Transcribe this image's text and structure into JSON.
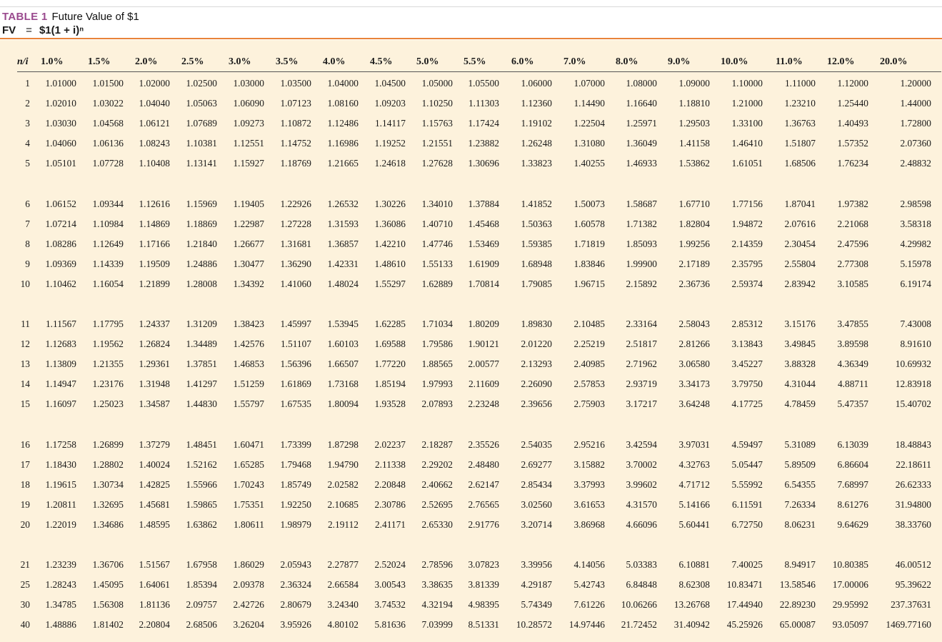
{
  "title": {
    "label": "TABLE 1",
    "text": "Future Value of $1",
    "formula_lhs": "FV",
    "formula_eq": "=",
    "formula_rhs": "$1(1 + i)ⁿ"
  },
  "colors": {
    "accent_title": "#9a4a8e",
    "rule": "#e8833a",
    "panel": "#fdf2dc"
  },
  "columns": [
    "n/i",
    "1.0%",
    "1.5%",
    "2.0%",
    "2.5%",
    "3.0%",
    "3.5%",
    "4.0%",
    "4.5%",
    "5.0%",
    "5.5%",
    "6.0%",
    "7.0%",
    "8.0%",
    "9.0%",
    "10.0%",
    "11.0%",
    "12.0%",
    "20.0%"
  ],
  "rows": [
    [
      "1",
      "1.01000",
      "1.01500",
      "1.02000",
      "1.02500",
      "1.03000",
      "1.03500",
      "1.04000",
      "1.04500",
      "1.05000",
      "1.05500",
      "1.06000",
      "1.07000",
      "1.08000",
      "1.09000",
      "1.10000",
      "1.11000",
      "1.12000",
      "1.20000"
    ],
    [
      "2",
      "1.02010",
      "1.03022",
      "1.04040",
      "1.05063",
      "1.06090",
      "1.07123",
      "1.08160",
      "1.09203",
      "1.10250",
      "1.11303",
      "1.12360",
      "1.14490",
      "1.16640",
      "1.18810",
      "1.21000",
      "1.23210",
      "1.25440",
      "1.44000"
    ],
    [
      "3",
      "1.03030",
      "1.04568",
      "1.06121",
      "1.07689",
      "1.09273",
      "1.10872",
      "1.12486",
      "1.14117",
      "1.15763",
      "1.17424",
      "1.19102",
      "1.22504",
      "1.25971",
      "1.29503",
      "1.33100",
      "1.36763",
      "1.40493",
      "1.72800"
    ],
    [
      "4",
      "1.04060",
      "1.06136",
      "1.08243",
      "1.10381",
      "1.12551",
      "1.14752",
      "1.16986",
      "1.19252",
      "1.21551",
      "1.23882",
      "1.26248",
      "1.31080",
      "1.36049",
      "1.41158",
      "1.46410",
      "1.51807",
      "1.57352",
      "2.07360"
    ],
    [
      "5",
      "1.05101",
      "1.07728",
      "1.10408",
      "1.13141",
      "1.15927",
      "1.18769",
      "1.21665",
      "1.24618",
      "1.27628",
      "1.30696",
      "1.33823",
      "1.40255",
      "1.46933",
      "1.53862",
      "1.61051",
      "1.68506",
      "1.76234",
      "2.48832"
    ],
    [
      "6",
      "1.06152",
      "1.09344",
      "1.12616",
      "1.15969",
      "1.19405",
      "1.22926",
      "1.26532",
      "1.30226",
      "1.34010",
      "1.37884",
      "1.41852",
      "1.50073",
      "1.58687",
      "1.67710",
      "1.77156",
      "1.87041",
      "1.97382",
      "2.98598"
    ],
    [
      "7",
      "1.07214",
      "1.10984",
      "1.14869",
      "1.18869",
      "1.22987",
      "1.27228",
      "1.31593",
      "1.36086",
      "1.40710",
      "1.45468",
      "1.50363",
      "1.60578",
      "1.71382",
      "1.82804",
      "1.94872",
      "2.07616",
      "2.21068",
      "3.58318"
    ],
    [
      "8",
      "1.08286",
      "1.12649",
      "1.17166",
      "1.21840",
      "1.26677",
      "1.31681",
      "1.36857",
      "1.42210",
      "1.47746",
      "1.53469",
      "1.59385",
      "1.71819",
      "1.85093",
      "1.99256",
      "2.14359",
      "2.30454",
      "2.47596",
      "4.29982"
    ],
    [
      "9",
      "1.09369",
      "1.14339",
      "1.19509",
      "1.24886",
      "1.30477",
      "1.36290",
      "1.42331",
      "1.48610",
      "1.55133",
      "1.61909",
      "1.68948",
      "1.83846",
      "1.99900",
      "2.17189",
      "2.35795",
      "2.55804",
      "2.77308",
      "5.15978"
    ],
    [
      "10",
      "1.10462",
      "1.16054",
      "1.21899",
      "1.28008",
      "1.34392",
      "1.41060",
      "1.48024",
      "1.55297",
      "1.62889",
      "1.70814",
      "1.79085",
      "1.96715",
      "2.15892",
      "2.36736",
      "2.59374",
      "2.83942",
      "3.10585",
      "6.19174"
    ],
    [
      "11",
      "1.11567",
      "1.17795",
      "1.24337",
      "1.31209",
      "1.38423",
      "1.45997",
      "1.53945",
      "1.62285",
      "1.71034",
      "1.80209",
      "1.89830",
      "2.10485",
      "2.33164",
      "2.58043",
      "2.85312",
      "3.15176",
      "3.47855",
      "7.43008"
    ],
    [
      "12",
      "1.12683",
      "1.19562",
      "1.26824",
      "1.34489",
      "1.42576",
      "1.51107",
      "1.60103",
      "1.69588",
      "1.79586",
      "1.90121",
      "2.01220",
      "2.25219",
      "2.51817",
      "2.81266",
      "3.13843",
      "3.49845",
      "3.89598",
      "8.91610"
    ],
    [
      "13",
      "1.13809",
      "1.21355",
      "1.29361",
      "1.37851",
      "1.46853",
      "1.56396",
      "1.66507",
      "1.77220",
      "1.88565",
      "2.00577",
      "2.13293",
      "2.40985",
      "2.71962",
      "3.06580",
      "3.45227",
      "3.88328",
      "4.36349",
      "10.69932"
    ],
    [
      "14",
      "1.14947",
      "1.23176",
      "1.31948",
      "1.41297",
      "1.51259",
      "1.61869",
      "1.73168",
      "1.85194",
      "1.97993",
      "2.11609",
      "2.26090",
      "2.57853",
      "2.93719",
      "3.34173",
      "3.79750",
      "4.31044",
      "4.88711",
      "12.83918"
    ],
    [
      "15",
      "1.16097",
      "1.25023",
      "1.34587",
      "1.44830",
      "1.55797",
      "1.67535",
      "1.80094",
      "1.93528",
      "2.07893",
      "2.23248",
      "2.39656",
      "2.75903",
      "3.17217",
      "3.64248",
      "4.17725",
      "4.78459",
      "5.47357",
      "15.40702"
    ],
    [
      "16",
      "1.17258",
      "1.26899",
      "1.37279",
      "1.48451",
      "1.60471",
      "1.73399",
      "1.87298",
      "2.02237",
      "2.18287",
      "2.35526",
      "2.54035",
      "2.95216",
      "3.42594",
      "3.97031",
      "4.59497",
      "5.31089",
      "6.13039",
      "18.48843"
    ],
    [
      "17",
      "1.18430",
      "1.28802",
      "1.40024",
      "1.52162",
      "1.65285",
      "1.79468",
      "1.94790",
      "2.11338",
      "2.29202",
      "2.48480",
      "2.69277",
      "3.15882",
      "3.70002",
      "4.32763",
      "5.05447",
      "5.89509",
      "6.86604",
      "22.18611"
    ],
    [
      "18",
      "1.19615",
      "1.30734",
      "1.42825",
      "1.55966",
      "1.70243",
      "1.85749",
      "2.02582",
      "2.20848",
      "2.40662",
      "2.62147",
      "2.85434",
      "3.37993",
      "3.99602",
      "4.71712",
      "5.55992",
      "6.54355",
      "7.68997",
      "26.62333"
    ],
    [
      "19",
      "1.20811",
      "1.32695",
      "1.45681",
      "1.59865",
      "1.75351",
      "1.92250",
      "2.10685",
      "2.30786",
      "2.52695",
      "2.76565",
      "3.02560",
      "3.61653",
      "4.31570",
      "5.14166",
      "6.11591",
      "7.26334",
      "8.61276",
      "31.94800"
    ],
    [
      "20",
      "1.22019",
      "1.34686",
      "1.48595",
      "1.63862",
      "1.80611",
      "1.98979",
      "2.19112",
      "2.41171",
      "2.65330",
      "2.91776",
      "3.20714",
      "3.86968",
      "4.66096",
      "5.60441",
      "6.72750",
      "8.06231",
      "9.64629",
      "38.33760"
    ],
    [
      "21",
      "1.23239",
      "1.36706",
      "1.51567",
      "1.67958",
      "1.86029",
      "2.05943",
      "2.27877",
      "2.52024",
      "2.78596",
      "3.07823",
      "3.39956",
      "4.14056",
      "5.03383",
      "6.10881",
      "7.40025",
      "8.94917",
      "10.80385",
      "46.00512"
    ],
    [
      "25",
      "1.28243",
      "1.45095",
      "1.64061",
      "1.85394",
      "2.09378",
      "2.36324",
      "2.66584",
      "3.00543",
      "3.38635",
      "3.81339",
      "4.29187",
      "5.42743",
      "6.84848",
      "8.62308",
      "10.83471",
      "13.58546",
      "17.00006",
      "95.39622"
    ],
    [
      "30",
      "1.34785",
      "1.56308",
      "1.81136",
      "2.09757",
      "2.42726",
      "2.80679",
      "3.24340",
      "3.74532",
      "4.32194",
      "4.98395",
      "5.74349",
      "7.61226",
      "10.06266",
      "13.26768",
      "17.44940",
      "22.89230",
      "29.95992",
      "237.37631"
    ],
    [
      "40",
      "1.48886",
      "1.81402",
      "2.20804",
      "2.68506",
      "3.26204",
      "3.95926",
      "4.80102",
      "5.81636",
      "7.03999",
      "8.51331",
      "10.28572",
      "14.97446",
      "21.72452",
      "31.40942",
      "45.25926",
      "65.00087",
      "93.05097",
      "1469.77160"
    ]
  ]
}
